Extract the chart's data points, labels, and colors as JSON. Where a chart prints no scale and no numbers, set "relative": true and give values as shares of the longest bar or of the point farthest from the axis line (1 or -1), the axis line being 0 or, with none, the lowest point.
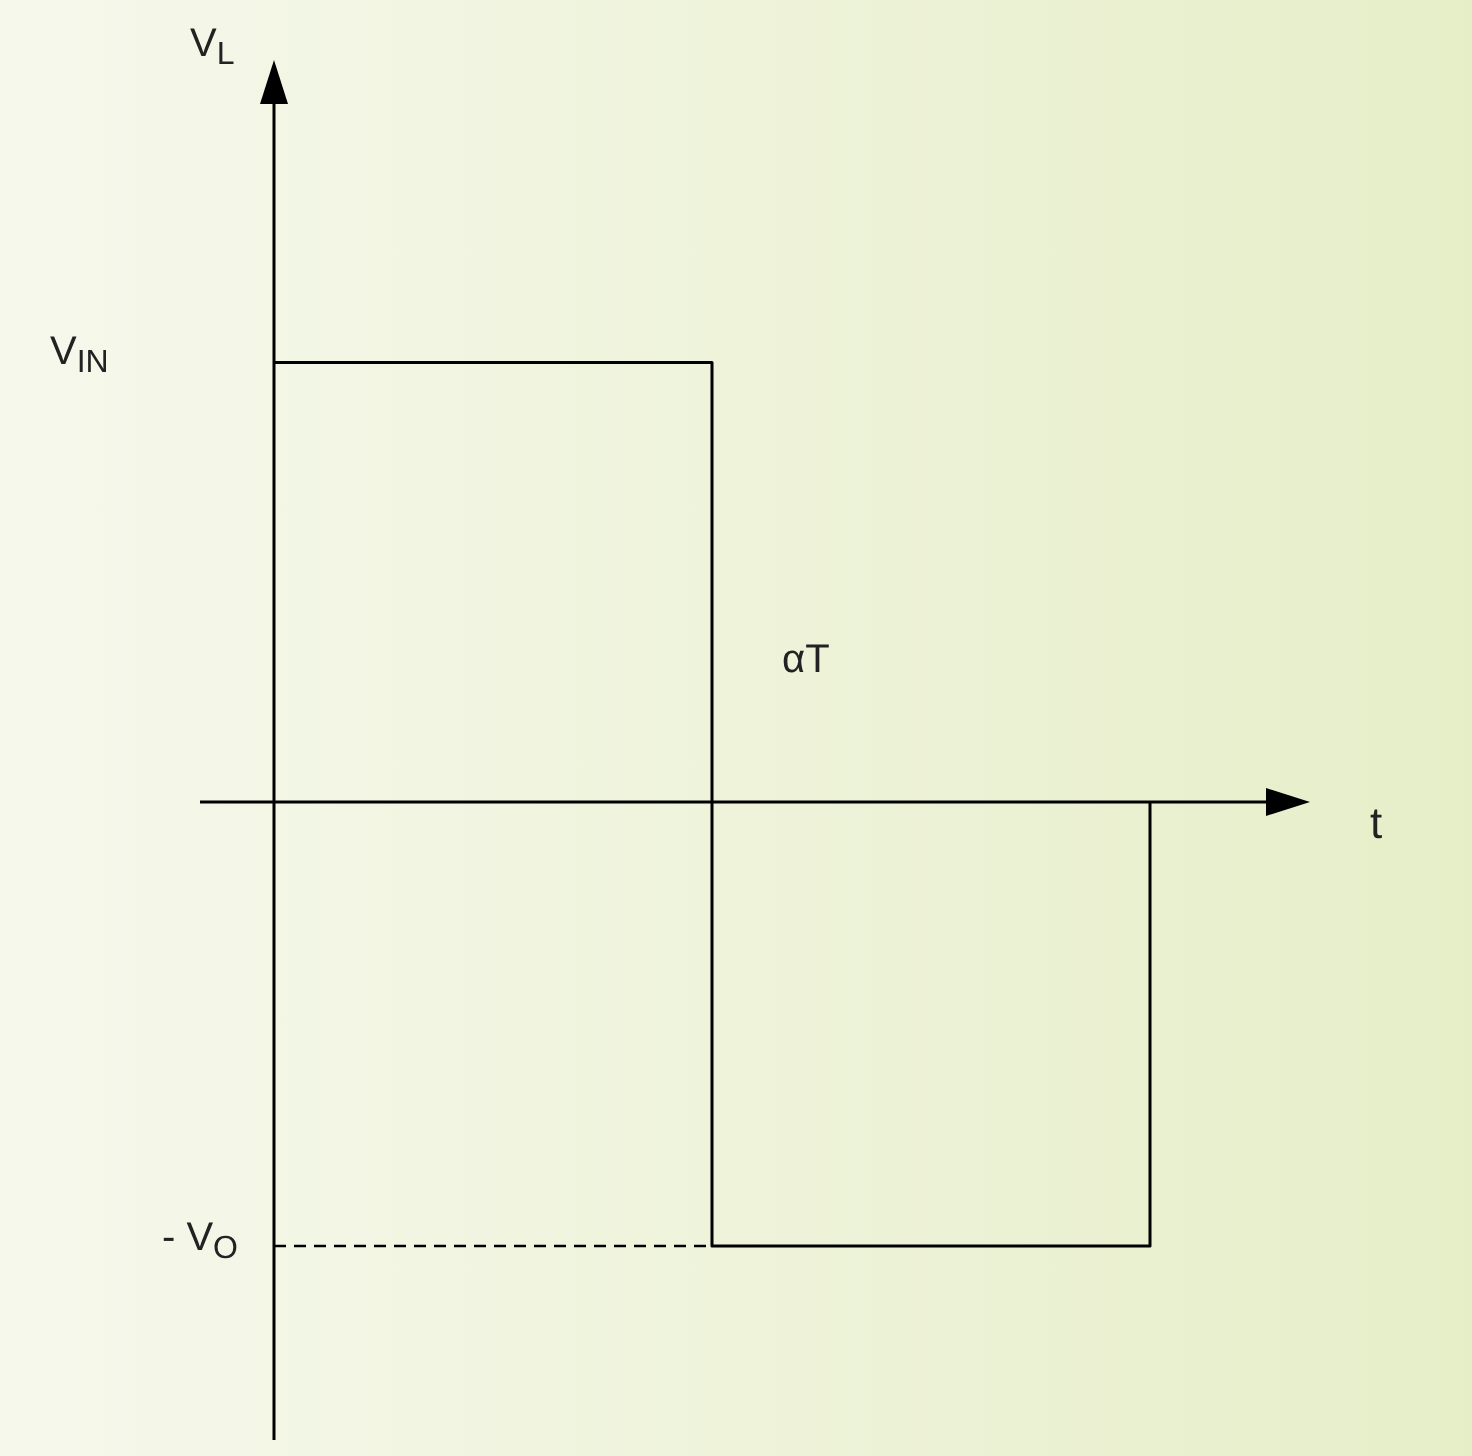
{
  "chart_data": {
    "type": "step",
    "relative": true,
    "xlabel": "t",
    "categories": [
      null,
      null,
      null
    ],
    "values": [
      0.99,
      -1,
      0
    ],
    "color": "#000000",
    "ref_lines": [
      {
        "axis": "y",
        "value": -1,
        "label": "- V$_{O}$",
        "line_style": "dashed"
      }
    ],
    "annotations": [
      "V$_{IN}$",
      "αT",
      "V$_{L}$"
    ]
  }
}
